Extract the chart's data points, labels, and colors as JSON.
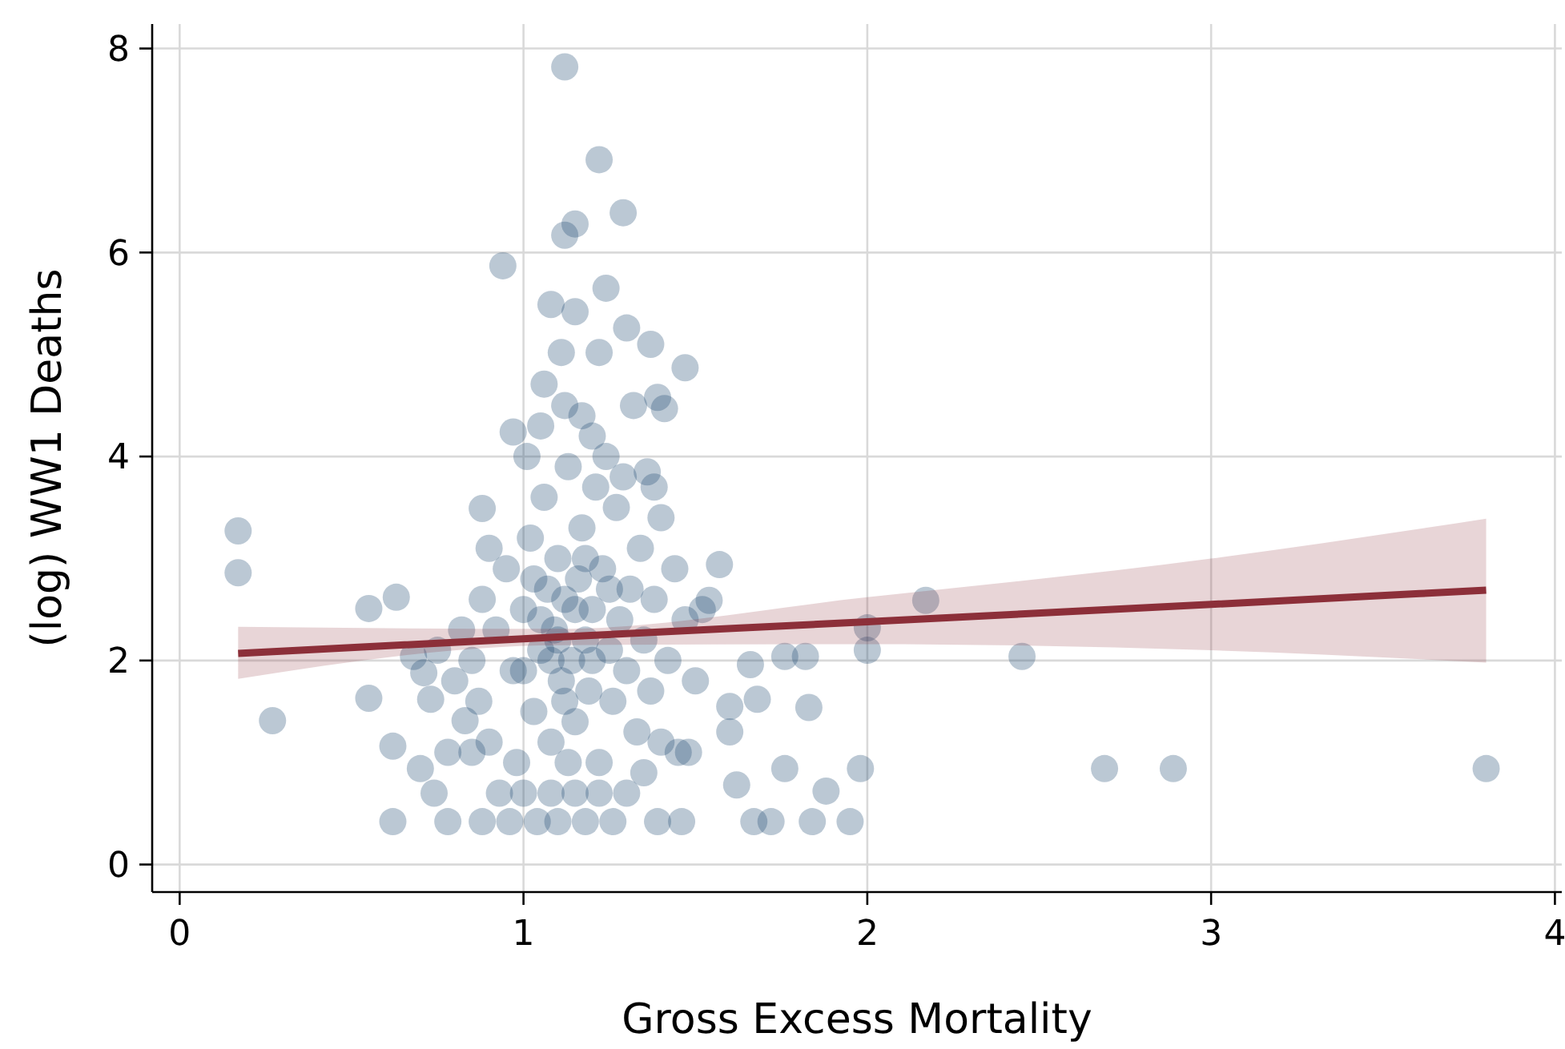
{
  "chart_data": {
    "type": "scatter",
    "xlabel": "Gross Excess Mortality",
    "ylabel": "(log) WW1 Deaths",
    "xlim": [
      -0.08,
      4.02
    ],
    "ylim": [
      -0.27,
      8.24
    ],
    "xticks": [
      0,
      1,
      2,
      3,
      4
    ],
    "yticks": [
      0,
      2,
      4,
      6,
      8
    ],
    "grid": true,
    "series": [
      {
        "marker": "circle",
        "color": "#1f4a72",
        "x": [
          0.17,
          0.17,
          0.27,
          0.55,
          0.55,
          0.63,
          0.62,
          0.62,
          0.88,
          0.94,
          1.12,
          1.22,
          1.29,
          1.12,
          1.15,
          1.47,
          2.0,
          2.0,
          2.17,
          2.45,
          2.69,
          2.89,
          3.8,
          1.98,
          1.95,
          1.84,
          1.88,
          1.82,
          1.83,
          1.76,
          1.68,
          1.66,
          1.62,
          1.72,
          1.67,
          1.76,
          1.6,
          1.6,
          1.57,
          1.54,
          1.46,
          1.39,
          1.48,
          1.39,
          1.41,
          1.36,
          0.78,
          0.88,
          0.7,
          0.74,
          0.71,
          0.73,
          0.68,
          0.83,
          0.85,
          0.97,
          1.06,
          1.08,
          1.15,
          1.24,
          1.3,
          1.37,
          1.22,
          1.11,
          0.92,
          0.95,
          0.97,
          1.0,
          1.02,
          1.03,
          1.05,
          1.06,
          1.07,
          1.08,
          1.09,
          1.1,
          1.11,
          1.12,
          1.13,
          1.14,
          1.15,
          1.16,
          1.17,
          1.18,
          1.19,
          1.2,
          1.21,
          1.22,
          1.23,
          1.25,
          1.26,
          1.27,
          1.28,
          1.3,
          1.31,
          1.33,
          1.34,
          1.35,
          1.37,
          1.38,
          1.4,
          1.42,
          1.44,
          1.45,
          1.47,
          1.5,
          1.52,
          0.85,
          0.87,
          0.88,
          0.9,
          0.9,
          0.93,
          0.96,
          0.98,
          1.0,
          1.01,
          1.04,
          1.05,
          1.08,
          1.1,
          1.12,
          1.13,
          1.15,
          1.17,
          1.18,
          1.2,
          1.22,
          1.24,
          1.26,
          1.29,
          1.3,
          1.32,
          1.35,
          1.38,
          1.4,
          0.8,
          0.82,
          0.78,
          0.75,
          1.0,
          1.05,
          1.1,
          1.15,
          1.2,
          1.25,
          1.08,
          1.12,
          1.03,
          1.18
        ],
        "values": [
          3.27,
          2.86,
          1.41,
          2.51,
          1.63,
          2.62,
          1.16,
          0.42,
          3.49,
          5.87,
          7.82,
          6.91,
          6.39,
          6.17,
          6.28,
          4.87,
          2.32,
          2.1,
          2.59,
          2.04,
          0.94,
          0.94,
          0.94,
          0.94,
          0.42,
          0.42,
          0.72,
          2.04,
          1.54,
          0.94,
          1.62,
          1.96,
          0.78,
          0.42,
          0.42,
          2.04,
          1.55,
          1.3,
          2.94,
          2.59,
          0.42,
          0.42,
          1.1,
          4.58,
          4.47,
          3.85,
          0.42,
          0.42,
          0.94,
          0.7,
          1.88,
          1.62,
          2.04,
          1.41,
          1.1,
          4.24,
          4.71,
          5.49,
          5.42,
          5.65,
          5.26,
          5.1,
          5.02,
          5.02,
          2.3,
          2.9,
          1.9,
          2.5,
          3.2,
          1.5,
          2.1,
          3.6,
          2.7,
          1.2,
          2.3,
          3.0,
          1.8,
          2.6,
          3.9,
          2.0,
          1.4,
          2.8,
          3.3,
          2.2,
          1.7,
          2.5,
          3.7,
          1.0,
          2.9,
          2.1,
          1.6,
          3.5,
          2.4,
          1.9,
          2.7,
          1.3,
          3.1,
          2.2,
          1.7,
          2.6,
          3.4,
          2.0,
          2.9,
          1.1,
          2.4,
          1.8,
          2.5,
          2.0,
          1.6,
          2.6,
          1.2,
          3.1,
          0.7,
          0.42,
          1.0,
          0.7,
          4.0,
          0.42,
          4.3,
          0.7,
          0.42,
          4.5,
          1.0,
          0.7,
          4.4,
          0.42,
          4.2,
          0.7,
          4.0,
          0.42,
          3.8,
          0.7,
          4.5,
          0.9,
          3.7,
          1.2,
          1.8,
          2.3,
          1.1,
          2.1,
          1.9,
          2.4,
          2.2,
          2.5,
          2.0,
          2.7,
          2.0,
          1.6,
          2.8,
          3.0
        ]
      },
      {
        "type": "line",
        "color": "#8c2f39",
        "x": [
          0.17,
          1.1,
          2.0,
          3.0,
          3.8
        ],
        "values": [
          2.07,
          2.23,
          2.38,
          2.55,
          2.69
        ],
        "lower": [
          1.82,
          2.15,
          2.16,
          2.1,
          1.98
        ],
        "upper": [
          2.33,
          2.31,
          2.62,
          3.0,
          3.39
        ]
      }
    ]
  }
}
